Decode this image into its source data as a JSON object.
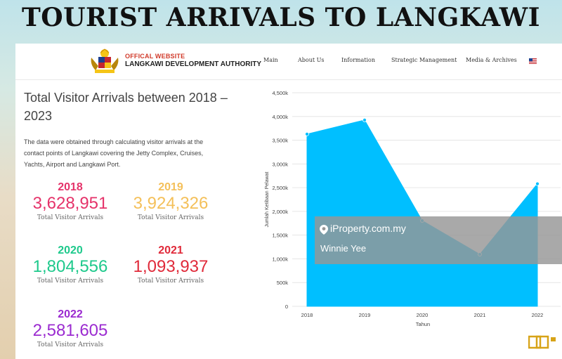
{
  "headline": "TOURIST ARRIVALS TO LANGKAWI",
  "header": {
    "brand_top": "OFFICAL WEBSITE",
    "brand_bottom": "LANGKAWI DEVELOPMENT AUTHORITY",
    "nav": [
      "Main",
      "About Us",
      "Information",
      "Strategic Management",
      "Media & Archives"
    ],
    "flag_icon": "us-flag-icon"
  },
  "section": {
    "title": "Total Visitor Arrivals between 2018 – 2023",
    "description": "The data were obtained through calculating visitor arrivals at the contact points of Langkawi covering the Jetty Complex, Cruises, Yachts, Airport and Langkawi Port."
  },
  "stats": [
    {
      "year": "2018",
      "value": "3,628,951",
      "caption": "Total Visitor Arrivals",
      "color": "#e5336a"
    },
    {
      "year": "2019",
      "value": "3,924,326",
      "caption": "Total Visitor Arrivals",
      "color": "#f4c05a"
    },
    {
      "year": "2020",
      "value": "1,804,556",
      "caption": "Total Visitor Arrivals",
      "color": "#1ec98c"
    },
    {
      "year": "2021",
      "value": "1,093,937",
      "caption": "Total Visitor Arrivals",
      "color": "#e02a3a"
    },
    {
      "year": "2022",
      "value": "2,581,605",
      "caption": "Total Visitor Arrivals",
      "color": "#9b2bd0"
    }
  ],
  "chart_data": {
    "type": "area",
    "categories": [
      "2018",
      "2019",
      "2020",
      "2021",
      "2022"
    ],
    "series": [
      {
        "values": [
          3628951,
          3924326,
          1804556,
          1093937,
          2581605
        ]
      }
    ],
    "xlabel": "Tahun",
    "ylabel": "Jumlah Ketibaan Pelawat",
    "ylim": [
      0,
      4500000
    ],
    "yticks": [
      0,
      500000,
      1000000,
      1500000,
      2000000,
      2500000,
      3000000,
      3500000,
      4000000,
      4500000
    ],
    "ytick_labels": [
      "0",
      "500k",
      "1,000k",
      "1,500k",
      "2,000k",
      "2,500k",
      "3,000k",
      "3,500k",
      "4,000k",
      "4,500k"
    ],
    "grid": true,
    "fill_color": "#00bfff"
  },
  "watermark": {
    "brand": "iProperty.com.my",
    "author": "Winnie Yee"
  }
}
